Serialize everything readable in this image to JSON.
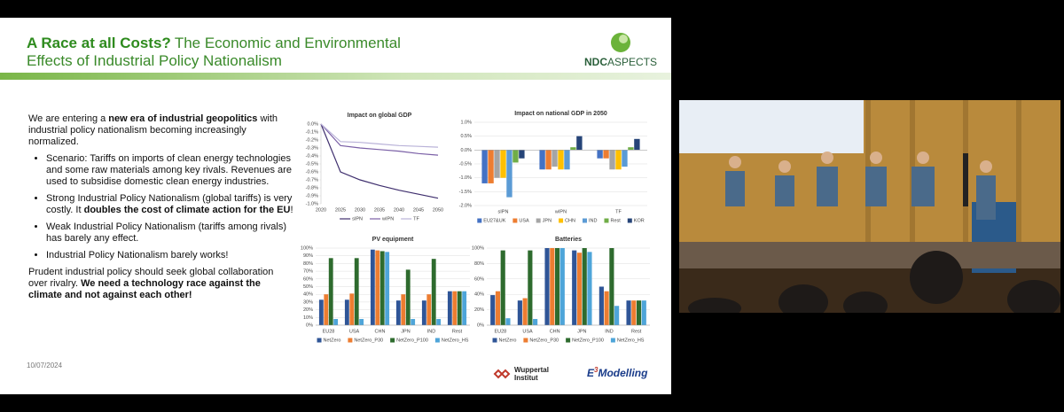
{
  "slide": {
    "title_highlight": "A Race at all Costs?",
    "title_rest": "The Economic and Environmental Effects of Industrial Policy Nationalism",
    "logo": {
      "a": "NDC",
      "b": "ASPECTS"
    },
    "body": {
      "intro": [
        "We are entering a ",
        "new era of industrial geopolitics",
        " with industrial policy nationalism becoming increasingly normalized."
      ],
      "bullets": [
        [
          "Scenario: Tariffs on imports of clean energy technologies and some raw materials among key rivals. Revenues are used to subsidise domestic clean energy industries."
        ],
        [
          "Strong Industrial Policy Nationalism (global tariffs) is very costly. It ",
          "doubles the cost of climate action for the EU",
          "!"
        ],
        [
          "Weak Industrial Policy Nationalism (tariffs among rivals) has barely any effect."
        ],
        [
          "Industrial Policy Nationalism barely works!"
        ]
      ],
      "closing": [
        "Prudent industrial policy should seek global collaboration over rivalry. ",
        "We need a technology race against the climate and not against each other!"
      ]
    },
    "date": "10/07/2024",
    "footer": {
      "wuppertal": [
        "Wuppertal",
        "Institut"
      ],
      "e3": {
        "mark": "E",
        "sup": "3",
        "name": "Modelling"
      }
    }
  },
  "chart_data": [
    {
      "type": "line",
      "title": "Impact on global GDP",
      "x": [
        2020,
        2025,
        2030,
        2035,
        2040,
        2045,
        2050
      ],
      "xlim": [
        2020,
        2050
      ],
      "ylim": [
        -1.0,
        0.0
      ],
      "grid": false,
      "yticks": [
        {
          "value": 0.0,
          "label": "0.0%"
        },
        {
          "value": -0.1,
          "label": "-0.1%"
        },
        {
          "value": -0.2,
          "label": "-0.2%"
        },
        {
          "value": -0.3,
          "label": "-0.3%"
        },
        {
          "value": -0.4,
          "label": "-0.4%"
        },
        {
          "value": -0.5,
          "label": "-0.5%"
        },
        {
          "value": -0.6,
          "label": "-0.6%"
        },
        {
          "value": -0.7,
          "label": "-0.7%"
        },
        {
          "value": -0.8,
          "label": "-0.8%"
        },
        {
          "value": -0.9,
          "label": "-0.9%"
        },
        {
          "value": -1.0,
          "label": "-1.0%"
        }
      ],
      "series": [
        {
          "name": "sIPN",
          "color": "#3f2f6e",
          "values": [
            0,
            -0.6,
            -0.7,
            -0.77,
            -0.83,
            -0.88,
            -0.93
          ]
        },
        {
          "name": "wIPN",
          "color": "#7a5fa6",
          "values": [
            0,
            -0.27,
            -0.3,
            -0.32,
            -0.34,
            -0.37,
            -0.39
          ]
        },
        {
          "name": "TF",
          "color": "#b9b2d8",
          "values": [
            0,
            -0.22,
            -0.23,
            -0.25,
            -0.27,
            -0.28,
            -0.29
          ]
        }
      ]
    },
    {
      "type": "bar",
      "title": "Impact on national GDP in 2050",
      "categories": [
        "sIPN",
        "wIPN",
        "TF"
      ],
      "ylim": [
        -2.0,
        1.0
      ],
      "grid": true,
      "yticks": [
        {
          "value": 1.0,
          "label": "1.0%"
        },
        {
          "value": 0.5,
          "label": "0.5%"
        },
        {
          "value": 0.0,
          "label": "0.0%"
        },
        {
          "value": -0.5,
          "label": "-0.5%"
        },
        {
          "value": -1.0,
          "label": "-1.0%"
        },
        {
          "value": -1.5,
          "label": "-1.5%"
        },
        {
          "value": -2.0,
          "label": "-2.0%"
        }
      ],
      "series": [
        {
          "name": "EU27&UK",
          "color": "#4472c4",
          "values": [
            -1.2,
            -0.7,
            -0.3
          ]
        },
        {
          "name": "USA",
          "color": "#ed7d31",
          "values": [
            -1.2,
            -0.7,
            -0.3
          ]
        },
        {
          "name": "JPN",
          "color": "#a5a5a5",
          "values": [
            -1.0,
            -0.6,
            -0.7
          ]
        },
        {
          "name": "CHN",
          "color": "#ffc000",
          "values": [
            -1.0,
            -0.7,
            -0.7
          ]
        },
        {
          "name": "IND",
          "color": "#5b9bd5",
          "values": [
            -1.7,
            -0.7,
            -0.6
          ]
        },
        {
          "name": "Rest",
          "color": "#70ad47",
          "values": [
            -0.45,
            0.1,
            0.1
          ]
        },
        {
          "name": "KOR",
          "color": "#264478",
          "values": [
            -0.3,
            0.5,
            0.4
          ]
        }
      ]
    },
    {
      "type": "bar",
      "title": "PV equipment",
      "categories": [
        "EU28",
        "USA",
        "CHN",
        "JPN",
        "IND",
        "Rest"
      ],
      "ylim": [
        0,
        100
      ],
      "grid": true,
      "yticks": [
        {
          "value": 0,
          "label": "0%"
        },
        {
          "value": 10,
          "label": "10%"
        },
        {
          "value": 20,
          "label": "20%"
        },
        {
          "value": 30,
          "label": "30%"
        },
        {
          "value": 40,
          "label": "40%"
        },
        {
          "value": 50,
          "label": "50%"
        },
        {
          "value": 60,
          "label": "60%"
        },
        {
          "value": 70,
          "label": "70%"
        },
        {
          "value": 80,
          "label": "80%"
        },
        {
          "value": 90,
          "label": "90%"
        },
        {
          "value": 100,
          "label": "100%"
        }
      ],
      "series": [
        {
          "name": "NetZero",
          "color": "#2f5597",
          "values": [
            33,
            33,
            98,
            32,
            32,
            44
          ]
        },
        {
          "name": "NetZero_P30",
          "color": "#ed7d31",
          "values": [
            40,
            41,
            97,
            40,
            40,
            44
          ]
        },
        {
          "name": "NetZero_P100",
          "color": "#2e6b2e",
          "values": [
            87,
            87,
            96,
            72,
            86,
            44
          ]
        },
        {
          "name": "NetZero_HS",
          "color": "#4ea5d9",
          "values": [
            8,
            8,
            95,
            8,
            8,
            44
          ]
        }
      ]
    },
    {
      "type": "bar",
      "title": "Batteries",
      "categories": [
        "EU28",
        "USA",
        "CHN",
        "JPN",
        "IND",
        "Rest"
      ],
      "ylim": [
        0,
        100
      ],
      "grid": true,
      "yticks": [
        {
          "value": 0,
          "label": "0%"
        },
        {
          "value": 20,
          "label": "20%"
        },
        {
          "value": 40,
          "label": "40%"
        },
        {
          "value": 60,
          "label": "60%"
        },
        {
          "value": 80,
          "label": "80%"
        },
        {
          "value": 100,
          "label": "100%"
        }
      ],
      "series": [
        {
          "name": "NetZero",
          "color": "#2f5597",
          "values": [
            39,
            32,
            100,
            97,
            50,
            32
          ]
        },
        {
          "name": "NetZero_P30",
          "color": "#ed7d31",
          "values": [
            44,
            35,
            100,
            94,
            44,
            32
          ]
        },
        {
          "name": "NetZero_P100",
          "color": "#2e6b2e",
          "values": [
            97,
            97,
            100,
            100,
            100,
            32
          ]
        },
        {
          "name": "NetZero_HS",
          "color": "#4ea5d9",
          "values": [
            9,
            8,
            100,
            95,
            25,
            32
          ]
        }
      ]
    }
  ]
}
